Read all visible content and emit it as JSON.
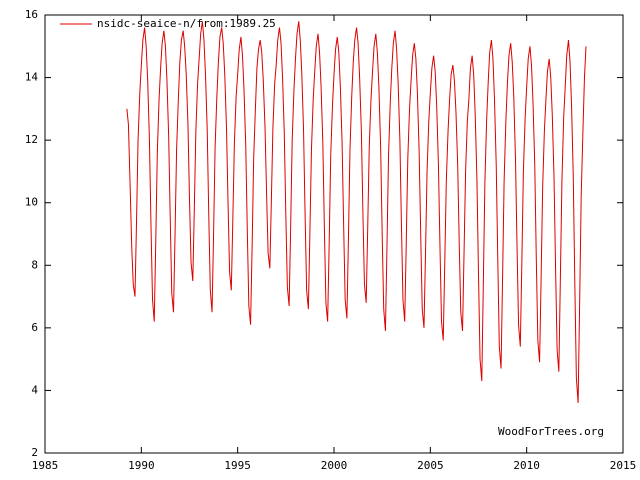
{
  "chart_data": {
    "type": "line",
    "annotation": "WoodForTrees.org",
    "legend": "top-left",
    "xlim": [
      1985,
      2015
    ],
    "xticks": [
      1985,
      1990,
      1995,
      2000,
      2005,
      2010,
      2015
    ],
    "ylim": [
      2,
      16
    ],
    "yticks": [
      2,
      4,
      6,
      8,
      10,
      12,
      14,
      16
    ],
    "x": [
      1989.25,
      1989.33,
      1989.42,
      1989.5,
      1989.58,
      1989.67,
      1989.75,
      1989.83,
      1989.92,
      1990.0,
      1990.08,
      1990.17,
      1990.25,
      1990.33,
      1990.42,
      1990.5,
      1990.58,
      1990.67,
      1990.75,
      1990.83,
      1990.92,
      1991.0,
      1991.08,
      1991.17,
      1991.25,
      1991.33,
      1991.42,
      1991.5,
      1991.58,
      1991.67,
      1991.75,
      1991.83,
      1991.92,
      1992.0,
      1992.08,
      1992.17,
      1992.25,
      1992.33,
      1992.42,
      1992.5,
      1992.58,
      1992.67,
      1992.75,
      1992.83,
      1992.92,
      1993.0,
      1993.08,
      1993.17,
      1993.25,
      1993.33,
      1993.42,
      1993.5,
      1993.58,
      1993.67,
      1993.75,
      1993.83,
      1993.92,
      1994.0,
      1994.08,
      1994.17,
      1994.25,
      1994.33,
      1994.42,
      1994.5,
      1994.58,
      1994.67,
      1994.75,
      1994.83,
      1994.92,
      1995.0,
      1995.08,
      1995.17,
      1995.25,
      1995.33,
      1995.42,
      1995.5,
      1995.58,
      1995.67,
      1995.75,
      1995.83,
      1995.92,
      1996.0,
      1996.08,
      1996.17,
      1996.25,
      1996.33,
      1996.42,
      1996.5,
      1996.58,
      1996.67,
      1996.75,
      1996.83,
      1996.92,
      1997.0,
      1997.08,
      1997.17,
      1997.25,
      1997.33,
      1997.42,
      1997.5,
      1997.58,
      1997.67,
      1997.75,
      1997.83,
      1997.92,
      1998.0,
      1998.08,
      1998.17,
      1998.25,
      1998.33,
      1998.42,
      1998.5,
      1998.58,
      1998.67,
      1998.75,
      1998.83,
      1998.92,
      1999.0,
      1999.08,
      1999.17,
      1999.25,
      1999.33,
      1999.42,
      1999.5,
      1999.58,
      1999.67,
      1999.75,
      1999.83,
      1999.92,
      2000.0,
      2000.08,
      2000.17,
      2000.25,
      2000.33,
      2000.42,
      2000.5,
      2000.58,
      2000.67,
      2000.75,
      2000.83,
      2000.92,
      2001.0,
      2001.08,
      2001.17,
      2001.25,
      2001.33,
      2001.42,
      2001.5,
      2001.58,
      2001.67,
      2001.75,
      2001.83,
      2001.92,
      2002.0,
      2002.08,
      2002.17,
      2002.25,
      2002.33,
      2002.42,
      2002.5,
      2002.58,
      2002.67,
      2002.75,
      2002.83,
      2002.92,
      2003.0,
      2003.08,
      2003.17,
      2003.25,
      2003.33,
      2003.42,
      2003.5,
      2003.58,
      2003.67,
      2003.75,
      2003.83,
      2003.92,
      2004.0,
      2004.08,
      2004.17,
      2004.25,
      2004.33,
      2004.42,
      2004.5,
      2004.58,
      2004.67,
      2004.75,
      2004.83,
      2004.92,
      2005.0,
      2005.08,
      2005.17,
      2005.25,
      2005.33,
      2005.42,
      2005.5,
      2005.58,
      2005.67,
      2005.75,
      2005.83,
      2005.92,
      2006.0,
      2006.08,
      2006.17,
      2006.25,
      2006.33,
      2006.42,
      2006.5,
      2006.58,
      2006.67,
      2006.75,
      2006.83,
      2006.92,
      2007.0,
      2007.08,
      2007.17,
      2007.25,
      2007.33,
      2007.42,
      2007.5,
      2007.58,
      2007.67,
      2007.75,
      2007.83,
      2007.92,
      2008.0,
      2008.08,
      2008.17,
      2008.25,
      2008.33,
      2008.42,
      2008.5,
      2008.58,
      2008.67,
      2008.75,
      2008.83,
      2008.92,
      2009.0,
      2009.08,
      2009.17,
      2009.25,
      2009.33,
      2009.42,
      2009.5,
      2009.58,
      2009.67,
      2009.75,
      2009.83,
      2009.92,
      2010.0,
      2010.08,
      2010.17,
      2010.25,
      2010.33,
      2010.42,
      2010.5,
      2010.58,
      2010.67,
      2010.75,
      2010.83,
      2010.92,
      2011.0,
      2011.08,
      2011.17,
      2011.25,
      2011.33,
      2011.42,
      2011.5,
      2011.58,
      2011.67,
      2011.75,
      2011.83,
      2011.92,
      2012.0,
      2012.08,
      2012.17,
      2012.25,
      2012.33,
      2012.42,
      2012.5,
      2012.58,
      2012.67,
      2012.75,
      2012.83,
      2012.92,
      2013.0,
      2013.08
    ],
    "series": [
      {
        "name": "nsidc-seaice-n/from:1989.25",
        "color": "#dd0000",
        "values": [
          13.0,
          12.5,
          10.5,
          8.6,
          7.4,
          7.0,
          9.4,
          12.0,
          13.5,
          14.4,
          15.2,
          15.6,
          15.0,
          13.9,
          12.0,
          9.3,
          6.9,
          6.2,
          8.8,
          11.6,
          13.3,
          14.3,
          15.1,
          15.5,
          15.0,
          13.9,
          12.1,
          9.5,
          7.1,
          6.5,
          9.0,
          11.7,
          13.3,
          14.5,
          15.2,
          15.5,
          15.0,
          14.1,
          12.5,
          10.1,
          8.1,
          7.5,
          9.8,
          12.3,
          13.8,
          14.6,
          15.4,
          15.8,
          15.2,
          14.1,
          12.3,
          9.6,
          7.2,
          6.5,
          9.0,
          11.8,
          13.4,
          14.5,
          15.3,
          15.6,
          15.1,
          14.1,
          12.4,
          10.0,
          7.8,
          7.2,
          9.5,
          11.9,
          13.4,
          14.1,
          14.9,
          15.3,
          14.7,
          13.6,
          11.8,
          9.1,
          6.7,
          6.1,
          8.6,
          11.4,
          13.0,
          14.3,
          14.9,
          15.2,
          14.8,
          13.9,
          12.4,
          10.3,
          8.4,
          7.9,
          10.1,
          12.4,
          13.8,
          14.4,
          15.2,
          15.6,
          15.1,
          14.0,
          12.2,
          9.6,
          7.3,
          6.7,
          9.2,
          12.0,
          13.6,
          14.6,
          15.4,
          15.8,
          15.2,
          14.1,
          12.3,
          9.6,
          7.2,
          6.6,
          9.1,
          11.7,
          13.3,
          14.2,
          15.0,
          15.4,
          14.8,
          13.7,
          11.9,
          9.2,
          6.8,
          6.2,
          8.7,
          11.5,
          13.1,
          14.1,
          14.9,
          15.3,
          14.8,
          13.7,
          11.9,
          9.3,
          6.9,
          6.3,
          8.9,
          11.7,
          13.4,
          14.5,
          15.2,
          15.6,
          15.1,
          14.0,
          12.3,
          9.7,
          7.4,
          6.8,
          9.2,
          11.8,
          13.3,
          14.2,
          15.0,
          15.4,
          14.8,
          13.7,
          11.8,
          9.0,
          6.6,
          5.9,
          8.6,
          11.5,
          13.2,
          14.3,
          15.1,
          15.5,
          14.9,
          13.8,
          12.0,
          9.3,
          6.9,
          6.2,
          8.7,
          11.4,
          13.0,
          13.9,
          14.7,
          15.1,
          14.6,
          13.5,
          11.6,
          9.0,
          6.6,
          6.0,
          8.4,
          11.0,
          12.6,
          13.5,
          14.3,
          14.7,
          14.2,
          13.1,
          11.2,
          8.6,
          6.2,
          5.6,
          8.1,
          10.7,
          12.3,
          13.3,
          14.1,
          14.4,
          13.9,
          12.9,
          11.2,
          8.7,
          6.5,
          5.9,
          8.4,
          11.0,
          12.6,
          13.3,
          14.3,
          14.7,
          14.1,
          12.8,
          10.7,
          7.7,
          5.0,
          4.3,
          7.4,
          10.6,
          12.6,
          13.8,
          14.8,
          15.2,
          14.6,
          13.3,
          11.2,
          8.2,
          5.4,
          4.7,
          7.6,
          10.7,
          12.6,
          13.8,
          14.7,
          15.1,
          14.5,
          13.4,
          11.4,
          8.6,
          6.1,
          5.4,
          8.1,
          11.0,
          12.7,
          13.7,
          14.6,
          15.0,
          14.4,
          13.2,
          11.2,
          8.2,
          5.6,
          4.9,
          7.6,
          10.5,
          12.3,
          13.3,
          14.2,
          14.6,
          14.0,
          12.8,
          10.8,
          7.9,
          5.3,
          4.6,
          7.6,
          10.7,
          12.7,
          13.7,
          14.7,
          15.2,
          14.5,
          13.1,
          10.8,
          7.4,
          4.4,
          3.6,
          6.8,
          10.2,
          12.3,
          14.0,
          15.0
        ]
      }
    ]
  }
}
